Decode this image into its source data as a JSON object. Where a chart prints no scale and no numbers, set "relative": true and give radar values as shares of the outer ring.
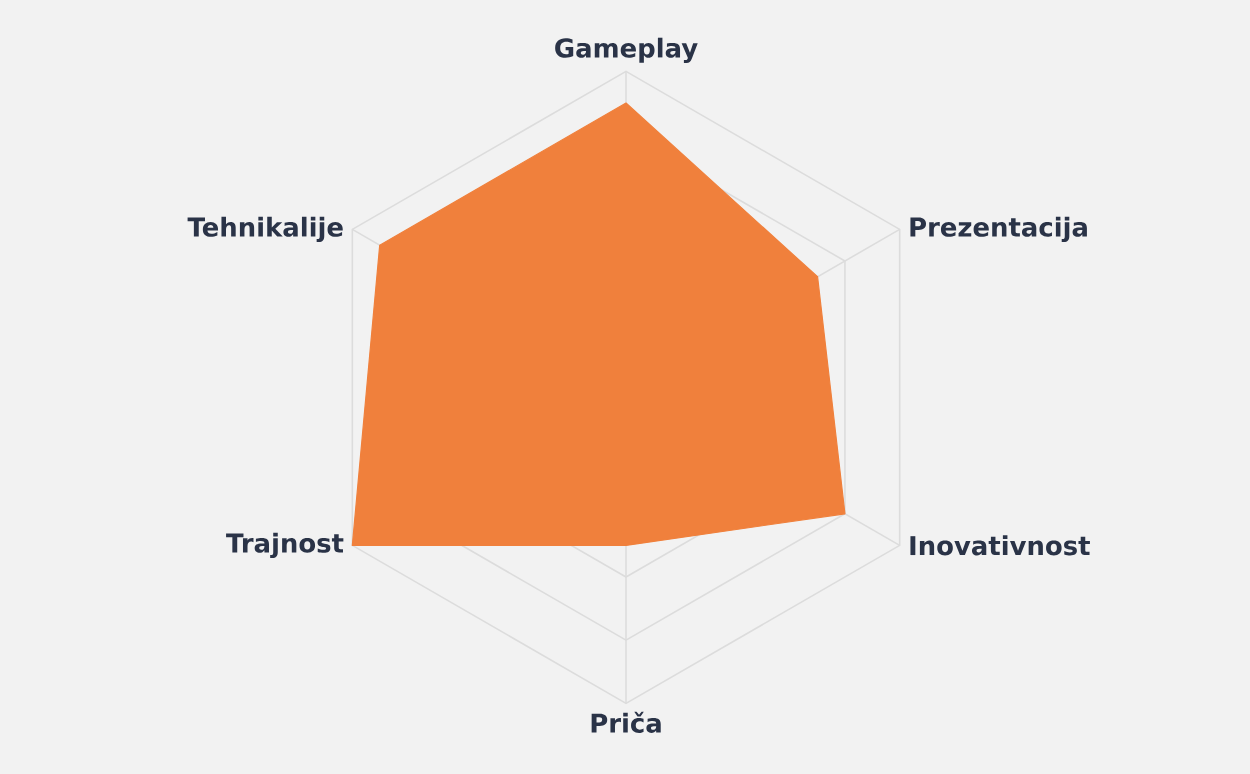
{
  "chart_data": {
    "type": "radar",
    "relative": true,
    "grid": true,
    "categories": [
      "Gameplay",
      "Prezentacija",
      "Inovativnost",
      "Priča",
      "Trajnost",
      "Tehnikalije"
    ],
    "series": [
      {
        "color": "#f0803c",
        "values": [
          0.9,
          0.7,
          0.8,
          0.5,
          1.0,
          0.9
        ]
      }
    ]
  }
}
